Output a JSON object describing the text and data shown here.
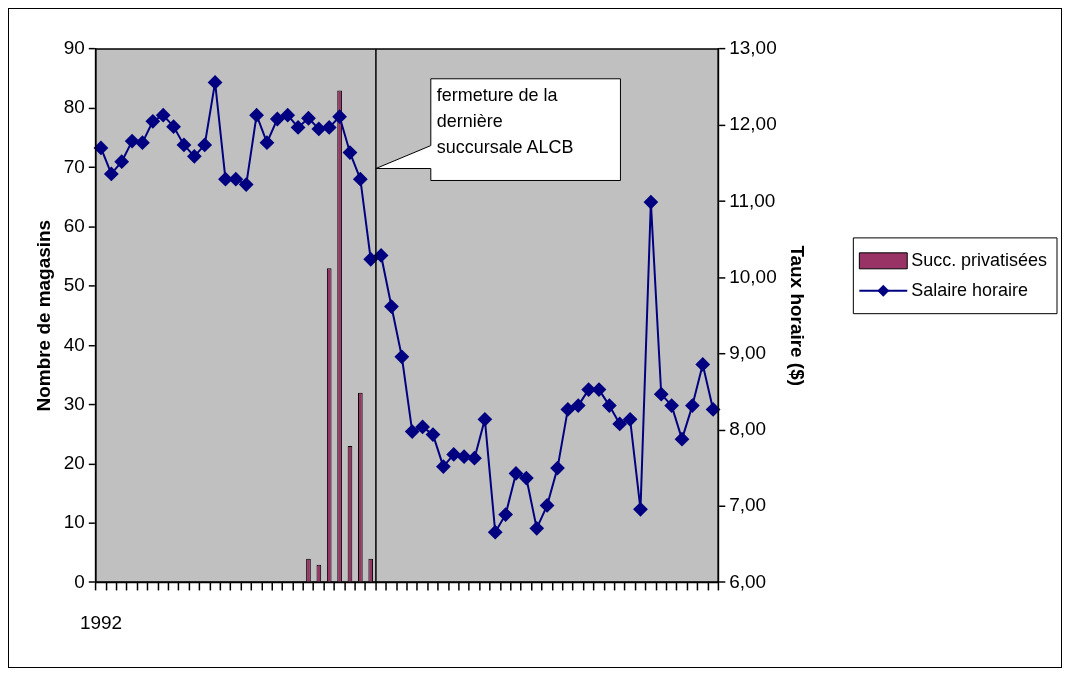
{
  "chart_data": {
    "type": "bar",
    "categories": [
      "1992",
      null,
      null,
      null,
      null,
      null,
      null,
      null,
      null,
      null,
      null,
      null,
      null,
      null,
      null,
      null,
      null,
      null,
      null,
      null,
      null,
      null,
      null,
      null,
      null,
      null,
      null,
      null,
      null,
      null,
      null,
      null,
      null,
      null,
      null,
      null,
      null,
      null,
      null,
      null,
      null,
      null,
      null,
      null,
      null,
      null,
      null,
      null,
      null,
      null,
      null,
      null,
      null,
      null,
      null,
      null,
      null,
      null,
      null,
      null
    ],
    "series": [
      {
        "name": "Succ. privatisées",
        "color": "#993366",
        "values": [
          null,
          null,
          null,
          null,
          null,
          null,
          null,
          null,
          null,
          null,
          null,
          null,
          null,
          null,
          null,
          null,
          null,
          null,
          null,
          null,
          4,
          3,
          53,
          83,
          23,
          32,
          4,
          null,
          null,
          null,
          null,
          null,
          null,
          null,
          null,
          null,
          null,
          null,
          null,
          null,
          null,
          null,
          null,
          null,
          null,
          null,
          null,
          null,
          null,
          null,
          null,
          null,
          null,
          null,
          null,
          null,
          null,
          null,
          null,
          null
        ]
      },
      {
        "name": "Salaire horaire",
        "type": "line",
        "color": "#000080",
        "axis": "y2",
        "values": [
          11.7,
          11.36,
          11.52,
          11.79,
          11.77,
          12.05,
          12.13,
          11.98,
          11.74,
          11.59,
          11.74,
          12.56,
          11.29,
          11.29,
          11.22,
          12.13,
          11.77,
          12.08,
          12.13,
          11.97,
          12.09,
          11.95,
          11.97,
          12.11,
          11.64,
          11.29,
          10.24,
          10.29,
          9.62,
          8.96,
          7.98,
          8.04,
          7.94,
          7.52,
          7.68,
          7.65,
          7.63,
          8.14,
          6.66,
          6.89,
          7.43,
          7.37,
          6.71,
          7.01,
          7.5,
          8.27,
          8.32,
          8.53,
          8.53,
          8.32,
          8.08,
          8.14,
          6.96,
          10.99,
          8.47,
          8.32,
          7.88,
          8.32,
          8.86,
          8.27
        ]
      }
    ],
    "ylabel": "Nombre de magasins",
    "y2label": "Taux horaire ($)",
    "ylim": [
      0,
      90
    ],
    "yticks": [
      0,
      10,
      20,
      30,
      40,
      50,
      60,
      70,
      80,
      90
    ],
    "y2lim": [
      6,
      13
    ],
    "y2ticks": [
      {
        "value": 6,
        "label": "6,00"
      },
      {
        "value": 7,
        "label": "7,00"
      },
      {
        "value": 8,
        "label": "8,00"
      },
      {
        "value": 9,
        "label": "9,00"
      },
      {
        "value": 10,
        "label": "10,00"
      },
      {
        "value": 11,
        "label": "11,00"
      },
      {
        "value": 12,
        "label": "12,00"
      },
      {
        "value": 13,
        "label": "13,00"
      }
    ],
    "annotations": [
      "fermeture de la dernière succursale ALCB"
    ],
    "legend": "right",
    "marker": "diamond",
    "grid": false
  }
}
